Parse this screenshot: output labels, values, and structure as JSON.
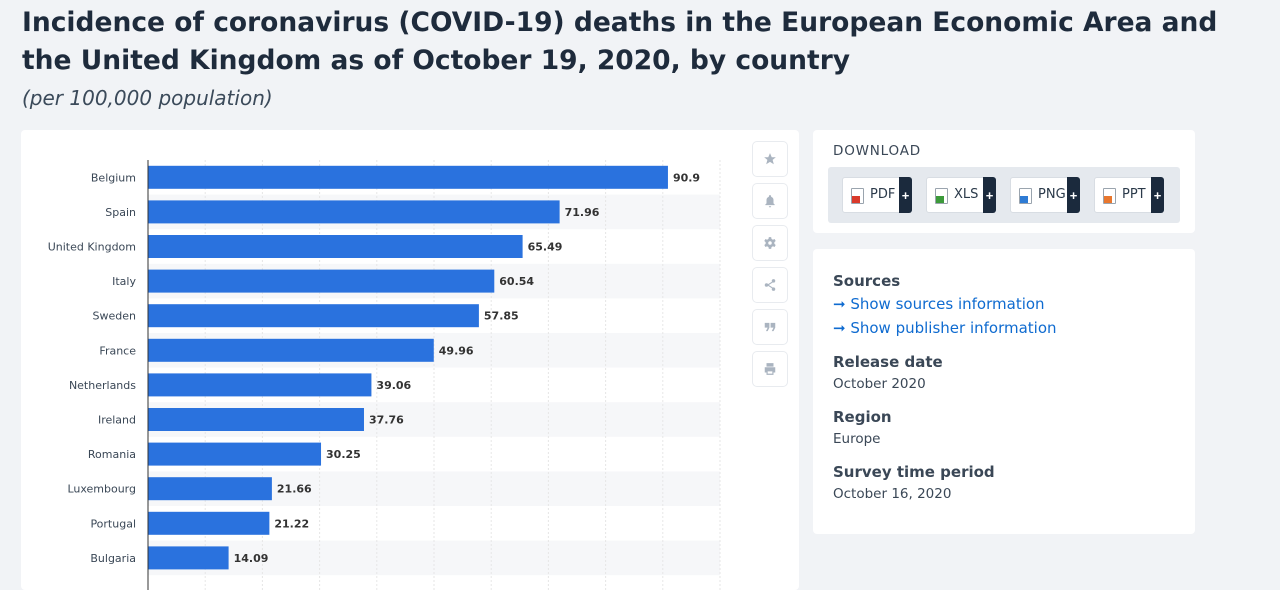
{
  "header": {
    "title": "Incidence of coronavirus (COVID-19) deaths in the European Economic Area and the United Kingdom as of October 19, 2020, by country",
    "subtitle": "(per 100,000 population)"
  },
  "colors": {
    "bar": "#2a72de",
    "accent": "#0f6bd0",
    "dark": "#1b2a3d"
  },
  "chart_data": {
    "type": "bar",
    "orientation": "horizontal",
    "categories": [
      "Belgium",
      "Spain",
      "United Kingdom",
      "Italy",
      "Sweden",
      "France",
      "Netherlands",
      "Ireland",
      "Romania",
      "Luxembourg",
      "Portugal",
      "Bulgaria"
    ],
    "values": [
      90.9,
      71.96,
      65.49,
      60.54,
      57.85,
      49.96,
      39.06,
      37.76,
      30.25,
      21.66,
      21.22,
      14.09
    ],
    "value_labels": [
      "90.9",
      "71.96",
      "65.49",
      "60.54",
      "57.85",
      "49.96",
      "39.06",
      "37.76",
      "30.25",
      "21.66",
      "21.22",
      "14.09"
    ],
    "title": "",
    "xlabel": "",
    "ylabel": "",
    "xlim": [
      0,
      100
    ],
    "grid": true,
    "data_labels": true
  },
  "tools": [
    {
      "name": "star-icon"
    },
    {
      "name": "bell-icon"
    },
    {
      "name": "gear-icon"
    },
    {
      "name": "share-icon"
    },
    {
      "name": "quote-icon"
    },
    {
      "name": "print-icon"
    }
  ],
  "download": {
    "heading": "DOWNLOAD",
    "plus": "+",
    "buttons": [
      {
        "label": "PDF",
        "icon": "pdf-file-icon",
        "color": "#d93a2b"
      },
      {
        "label": "XLS",
        "icon": "xls-file-icon",
        "color": "#3c9a3a"
      },
      {
        "label": "PNG",
        "icon": "png-file-icon",
        "color": "#2e7bd4"
      },
      {
        "label": "PPT",
        "icon": "ppt-file-icon",
        "color": "#e8772e"
      }
    ]
  },
  "info": {
    "sources_heading": "Sources",
    "show_sources": "➞ Show sources information",
    "show_publisher": "➞ Show publisher information",
    "release_heading": "Release date",
    "release_value": "October 2020",
    "region_heading": "Region",
    "region_value": "Europe",
    "survey_heading": "Survey time period",
    "survey_value": "October 16, 2020"
  }
}
